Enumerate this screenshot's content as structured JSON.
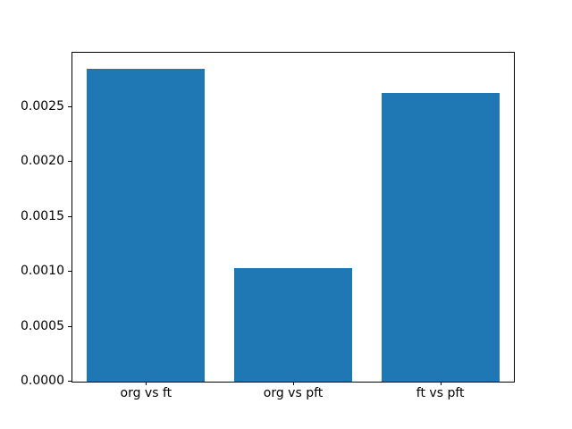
{
  "chart_data": {
    "type": "bar",
    "categories": [
      "org vs ft",
      "org vs pft",
      "ft vs pft"
    ],
    "values": [
      0.00285,
      0.00103,
      0.00263
    ],
    "title": "",
    "xlabel": "",
    "ylabel": "",
    "ylim": [
      0,
      0.0029925
    ],
    "yticks": [
      0.0,
      0.0005,
      0.001,
      0.0015,
      0.002,
      0.0025
    ],
    "ytick_labels": [
      "0.0000",
      "0.0005",
      "0.0010",
      "0.0015",
      "0.0020",
      "0.0025"
    ],
    "bar_width_fraction": 0.8,
    "grid": false,
    "legend": null,
    "bar_color": "#1f77b4"
  },
  "colors": {
    "bar": "#1f77b4",
    "background": "#ffffff",
    "spine": "#000000",
    "tick_text": "#000000"
  }
}
